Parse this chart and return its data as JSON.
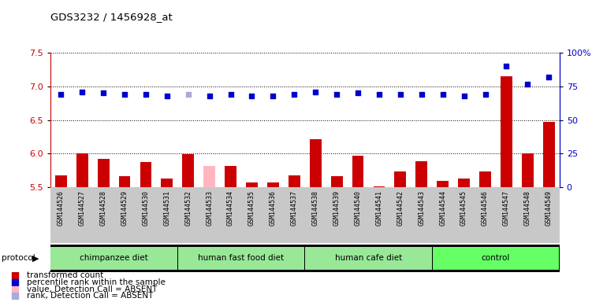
{
  "title": "GDS3232 / 1456928_at",
  "samples": [
    "GSM144526",
    "GSM144527",
    "GSM144528",
    "GSM144529",
    "GSM144530",
    "GSM144531",
    "GSM144532",
    "GSM144533",
    "GSM144534",
    "GSM144535",
    "GSM144536",
    "GSM144537",
    "GSM144538",
    "GSM144539",
    "GSM144540",
    "GSM144541",
    "GSM144542",
    "GSM144543",
    "GSM144544",
    "GSM144545",
    "GSM144546",
    "GSM144547",
    "GSM144548",
    "GSM144549"
  ],
  "red_values": [
    5.68,
    6.01,
    5.92,
    5.67,
    5.88,
    5.63,
    5.99,
    5.82,
    5.82,
    5.57,
    5.57,
    5.68,
    6.22,
    5.67,
    5.97,
    5.51,
    5.73,
    5.89,
    5.6,
    5.63,
    5.73,
    7.15,
    6.01,
    6.47
  ],
  "blue_values": [
    69,
    71,
    70,
    69,
    69,
    68,
    69,
    68,
    69,
    68,
    68,
    69,
    71,
    69,
    70,
    69,
    69,
    69,
    69,
    68,
    69,
    90,
    77,
    82
  ],
  "absent_value_indices": [
    7
  ],
  "absent_rank_indices": [
    6
  ],
  "groups": [
    {
      "label": "chimpanzee diet",
      "start": 0,
      "end": 5,
      "color": "#98E898"
    },
    {
      "label": "human fast food diet",
      "start": 6,
      "end": 11,
      "color": "#98E898"
    },
    {
      "label": "human cafe diet",
      "start": 12,
      "end": 17,
      "color": "#98E898"
    },
    {
      "label": "control",
      "start": 18,
      "end": 23,
      "color": "#66FF66"
    }
  ],
  "ylim_left": [
    5.5,
    7.5
  ],
  "ylim_right": [
    0,
    100
  ],
  "bar_color": "#CC0000",
  "bar_absent_color": "#FFB6C1",
  "dot_color": "#0000CC",
  "dot_absent_color": "#AAAADD",
  "tick_bg_color": "#C8C8C8",
  "plot_bg": "#FFFFFF",
  "yticks_left": [
    5.5,
    6.0,
    6.5,
    7.0,
    7.5
  ],
  "yticks_right": [
    0,
    25,
    50,
    75,
    100
  ],
  "ytick_labels_right": [
    "0",
    "25",
    "50",
    "75",
    "100%"
  ],
  "legend_items": [
    {
      "color": "#CC0000",
      "label": "transformed count"
    },
    {
      "color": "#0000CC",
      "label": "percentile rank within the sample"
    },
    {
      "color": "#FFB6C1",
      "label": "value, Detection Call = ABSENT"
    },
    {
      "color": "#AAAADD",
      "label": "rank, Detection Call = ABSENT"
    }
  ]
}
